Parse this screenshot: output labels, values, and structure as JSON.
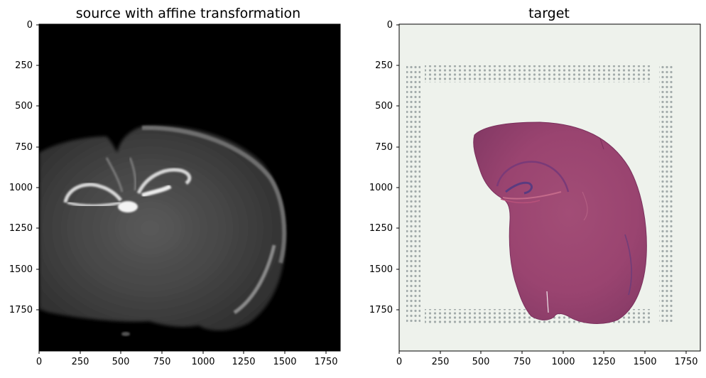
{
  "figure": {
    "panels": [
      {
        "title": "source with affine transformation",
        "x_ticks": [
          "0",
          "250",
          "500",
          "750",
          "1000",
          "1250",
          "1500",
          "1750"
        ],
        "y_ticks": [
          "0",
          "250",
          "500",
          "750",
          "1000",
          "1250",
          "1500",
          "1750"
        ],
        "colormap": "gray"
      },
      {
        "title": "target",
        "x_ticks": [
          "0",
          "250",
          "500",
          "750",
          "1000",
          "1250",
          "1500",
          "1750"
        ],
        "y_ticks": [
          "0",
          "250",
          "500",
          "750",
          "1000",
          "1250",
          "1500",
          "1750"
        ],
        "colormap": "rgb-histology"
      }
    ]
  }
}
